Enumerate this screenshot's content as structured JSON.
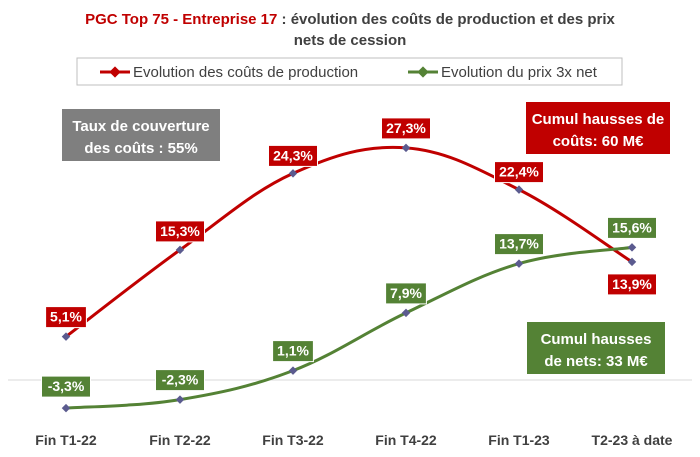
{
  "chart_data": {
    "type": "line",
    "title_prefix": "PGC Top 75 - Entreprise 17",
    "title_rest_1": " : évolution des coûts de production et des prix",
    "title_rest_2": "nets de cession",
    "categories": [
      "Fin T1-22",
      "Fin T2-22",
      "Fin T3-22",
      "Fin T4-22",
      "Fin T1-23",
      "T2-23 à date"
    ],
    "series": [
      {
        "name": "Evolution des coûts de production",
        "values": [
          5.1,
          15.3,
          24.3,
          27.3,
          22.4,
          13.9
        ],
        "labels": [
          "5,1%",
          "15,3%",
          "24,3%",
          "27,3%",
          "22,4%",
          "13,9%"
        ],
        "color": "#c00000"
      },
      {
        "name": "Evolution du prix 3x net",
        "values": [
          -3.3,
          -2.3,
          1.1,
          7.9,
          13.7,
          15.6
        ],
        "labels": [
          "-3,3%",
          "-2,3%",
          "1,1%",
          "7,9%",
          "13,7%",
          "15,6%"
        ],
        "color": "#548235"
      }
    ],
    "marker_color": "#5b5b8f",
    "legend_position": "top",
    "grid": false,
    "axis_baseline": 0,
    "callouts": {
      "coverage": {
        "line1": "Taux de couverture",
        "line2": "des coûts : 55%",
        "color": "#7f7f7f"
      },
      "cost_increase": {
        "line1": "Cumul hausses de",
        "line2": "coûts: 60 M€",
        "color": "#c00000"
      },
      "net_increase": {
        "line1": "Cumul hausses",
        "line2": "de nets: 33 M€",
        "color": "#548235"
      }
    }
  }
}
